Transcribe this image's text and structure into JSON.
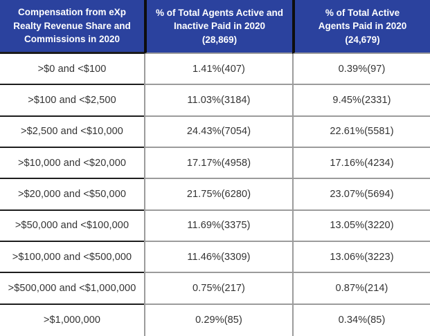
{
  "chart_data": {
    "type": "table",
    "title": "Compensation from eXp Realty Revenue Share and Commissions in 2020",
    "columns": [
      {
        "label": "Compensation from eXp Realty Revenue Share and Commissions in 2020",
        "lines": [
          "Compensation from eXp",
          "Realty Revenue Share and",
          "Commissions in 2020"
        ]
      },
      {
        "label": "% of Total Agents Active and Inactive Paid in 2020 (28,869)",
        "lines": [
          "% of Total Agents Active and",
          "Inactive Paid in 2020",
          "(28,869)"
        ]
      },
      {
        "label": "% of Total Active Agents Paid in 2020 (24,679)",
        "lines": [
          "% of Total Active",
          "Agents Paid in 2020",
          "(24,679)"
        ]
      }
    ],
    "rows": [
      [
        ">$0 and <$100",
        "1.41%(407)",
        "0.39%(97)"
      ],
      [
        ">$100 and <$2,500",
        "11.03%(3184)",
        "9.45%(2331)"
      ],
      [
        ">$2,500 and <$10,000",
        "24.43%(7054)",
        "22.61%(5581)"
      ],
      [
        ">$10,000 and <$20,000",
        "17.17%(4958)",
        "17.16%(4234)"
      ],
      [
        ">$20,000 and <$50,000",
        "21.75%(6280)",
        "23.07%(5694)"
      ],
      [
        ">$50,000 and <$100,000",
        "11.69%(3375)",
        "13.05%(3220)"
      ],
      [
        ">$100,000 and <$500,000",
        "11.46%(3309)",
        "13.06%(3223)"
      ],
      [
        ">$500,000 and <$1,000,000",
        "0.75%(217)",
        "0.87%(214)"
      ],
      [
        ">$1,000,000",
        "0.29%(85)",
        "0.34%(85)"
      ]
    ]
  },
  "colors": {
    "header_bg": "#2b429e",
    "header_text": "#ffffff",
    "body_text": "#333333",
    "border_dark": "#1c1c1c",
    "border_gray": "#9b9b9b"
  }
}
